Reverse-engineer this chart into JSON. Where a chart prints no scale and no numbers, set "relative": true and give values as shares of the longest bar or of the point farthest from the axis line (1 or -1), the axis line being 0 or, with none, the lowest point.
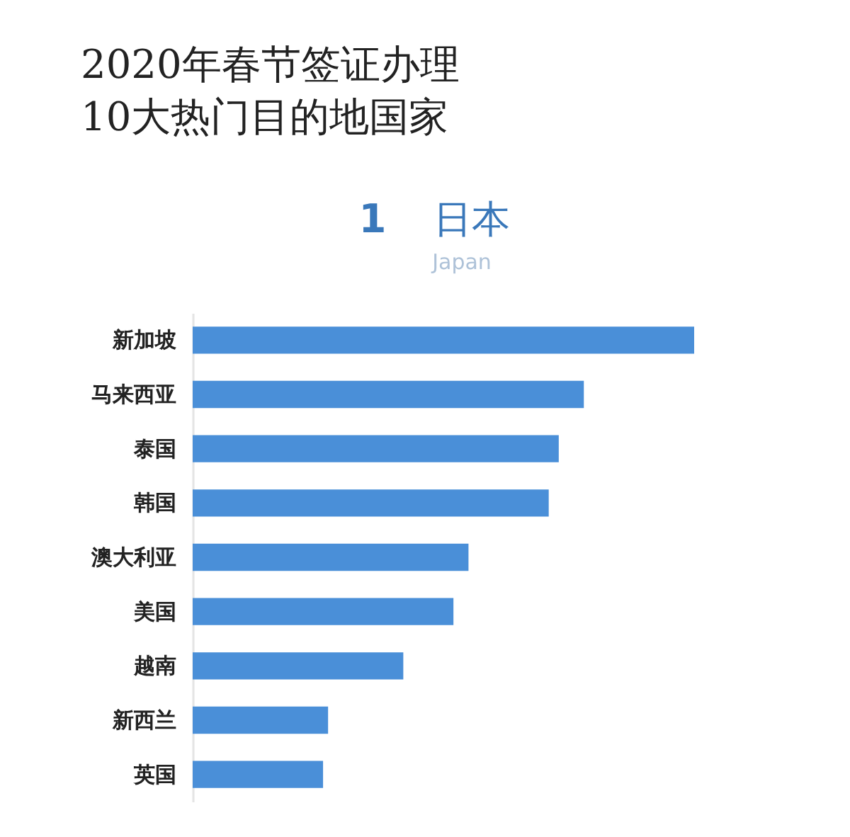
{
  "chart_data": {
    "type": "bar",
    "orientation": "horizontal",
    "relative": true,
    "title": "2020年春节签证办理\n10大热门目的地国家",
    "subtitle": "日本",
    "annotations": [
      "1",
      "Japan"
    ],
    "categories": [
      "新加坡",
      "马来西亚",
      "泰国",
      "韩国",
      "澳大利亚",
      "美国",
      "越南",
      "新西兰",
      "英国"
    ],
    "values": [
      1,
      0.78,
      0.73,
      0.71,
      0.55,
      0.52,
      0.42,
      0.27,
      0.26
    ],
    "color": "#4a8fd8"
  }
}
